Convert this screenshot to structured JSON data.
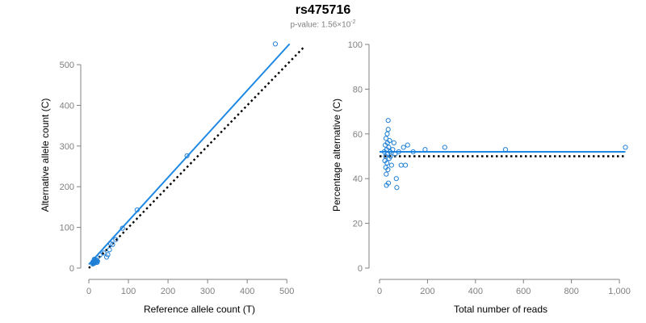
{
  "header": {
    "title": "rs475716",
    "subtitle_prefix": "p-value: 1.56×10",
    "subtitle_exponent": "-2"
  },
  "colors": {
    "points": "#1f7fd6",
    "fit_line": "#1e88e5",
    "reference_line": "#000000",
    "axis": "#808080",
    "tick_text": "#7f7f7f"
  },
  "chart_data": [
    {
      "type": "scatter",
      "title": "",
      "xlabel": "Reference allele count (T)",
      "ylabel": "Alternative allele count (C)",
      "xlim": [
        0,
        520
      ],
      "ylim": [
        0,
        520
      ],
      "xticks": [
        0,
        100,
        200,
        300,
        400,
        500
      ],
      "yticks": [
        0,
        100,
        200,
        300,
        400,
        500
      ],
      "xtick_labels": [
        "0",
        "100",
        "200",
        "300",
        "400",
        "500"
      ],
      "ytick_labels": [
        "0",
        "100",
        "200",
        "300",
        "400",
        "500"
      ],
      "points": [
        {
          "x": 10,
          "y": 10
        },
        {
          "x": 11,
          "y": 13
        },
        {
          "x": 12,
          "y": 15
        },
        {
          "x": 13,
          "y": 17
        },
        {
          "x": 14,
          "y": 18
        },
        {
          "x": 15,
          "y": 20
        },
        {
          "x": 12,
          "y": 11
        },
        {
          "x": 16,
          "y": 13
        },
        {
          "x": 17,
          "y": 15
        },
        {
          "x": 18,
          "y": 18
        },
        {
          "x": 19,
          "y": 16
        },
        {
          "x": 20,
          "y": 20
        },
        {
          "x": 14,
          "y": 22
        },
        {
          "x": 11,
          "y": 16
        },
        {
          "x": 22,
          "y": 17
        },
        {
          "x": 21,
          "y": 14
        },
        {
          "x": 28,
          "y": 32
        },
        {
          "x": 38,
          "y": 37
        },
        {
          "x": 45,
          "y": 27
        },
        {
          "x": 48,
          "y": 33
        },
        {
          "x": 52,
          "y": 45
        },
        {
          "x": 55,
          "y": 60
        },
        {
          "x": 60,
          "y": 58
        },
        {
          "x": 68,
          "y": 70
        },
        {
          "x": 85,
          "y": 98
        },
        {
          "x": 122,
          "y": 143
        },
        {
          "x": 248,
          "y": 276
        },
        {
          "x": 471,
          "y": 551
        }
      ],
      "fit_line": {
        "x": [
          0,
          507
        ],
        "y": [
          9,
          551
        ]
      },
      "reference_line": {
        "x": [
          0,
          545
        ],
        "y": [
          0,
          545
        ]
      }
    },
    {
      "type": "scatter",
      "title": "",
      "xlabel": "Total number of reads",
      "ylabel": "Percentage alternative (C)",
      "xlim": [
        0,
        1020
      ],
      "ylim": [
        0,
        100
      ],
      "xticks": [
        0,
        200,
        400,
        600,
        800,
        1000
      ],
      "yticks": [
        0,
        20,
        40,
        60,
        80,
        100
      ],
      "xtick_labels": [
        "0",
        "200",
        "400",
        "600",
        "800",
        "1,000"
      ],
      "ytick_labels": [
        "0",
        "20",
        "40",
        "60",
        "80",
        "100"
      ],
      "points": [
        {
          "x": 20,
          "y": 52
        },
        {
          "x": 22,
          "y": 48
        },
        {
          "x": 24,
          "y": 55
        },
        {
          "x": 25,
          "y": 50
        },
        {
          "x": 26,
          "y": 45
        },
        {
          "x": 27,
          "y": 58
        },
        {
          "x": 28,
          "y": 42
        },
        {
          "x": 29,
          "y": 37
        },
        {
          "x": 30,
          "y": 53
        },
        {
          "x": 31,
          "y": 47
        },
        {
          "x": 32,
          "y": 60
        },
        {
          "x": 33,
          "y": 56
        },
        {
          "x": 34,
          "y": 51
        },
        {
          "x": 35,
          "y": 44
        },
        {
          "x": 36,
          "y": 62
        },
        {
          "x": 36,
          "y": 66
        },
        {
          "x": 37,
          "y": 38
        },
        {
          "x": 38,
          "y": 54
        },
        {
          "x": 40,
          "y": 49
        },
        {
          "x": 42,
          "y": 57
        },
        {
          "x": 44,
          "y": 52
        },
        {
          "x": 46,
          "y": 50
        },
        {
          "x": 50,
          "y": 46
        },
        {
          "x": 55,
          "y": 53
        },
        {
          "x": 60,
          "y": 56
        },
        {
          "x": 65,
          "y": 51
        },
        {
          "x": 70,
          "y": 40
        },
        {
          "x": 72,
          "y": 36
        },
        {
          "x": 80,
          "y": 52
        },
        {
          "x": 90,
          "y": 46
        },
        {
          "x": 100,
          "y": 54
        },
        {
          "x": 108,
          "y": 46
        },
        {
          "x": 117,
          "y": 55
        },
        {
          "x": 140,
          "y": 52
        },
        {
          "x": 190,
          "y": 53
        },
        {
          "x": 272,
          "y": 54
        },
        {
          "x": 525,
          "y": 53
        },
        {
          "x": 1025,
          "y": 54
        }
      ],
      "fit_line": {
        "x": [
          0,
          1025
        ],
        "y": [
          52,
          52
        ]
      },
      "reference_line": {
        "x": [
          0,
          1025
        ],
        "y": [
          50,
          50
        ]
      }
    }
  ]
}
